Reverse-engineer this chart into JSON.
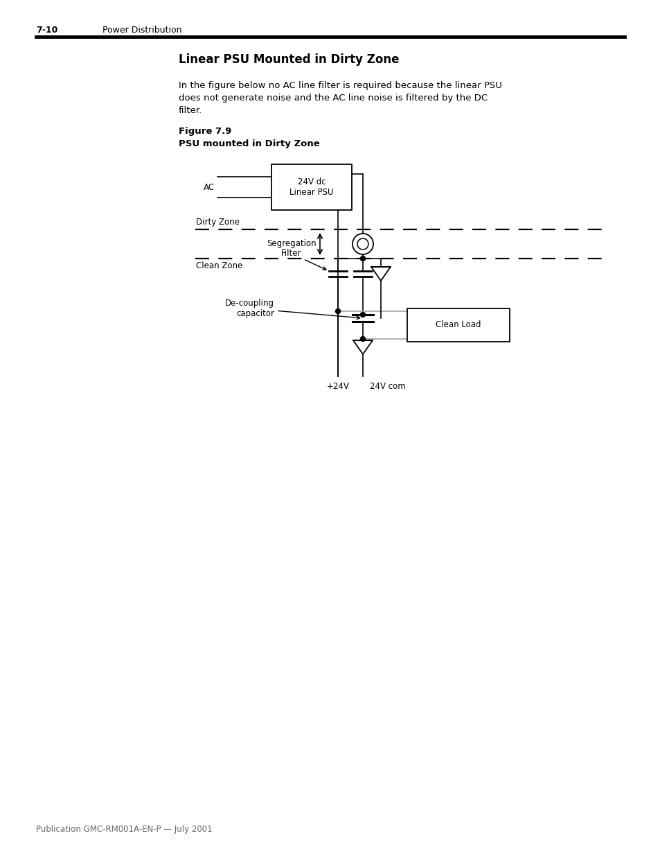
{
  "page_number": "7-10",
  "page_header": "Power Distribution",
  "title": "Linear PSU Mounted in Dirty Zone",
  "body_text_line1": "In the figure below no AC line filter is required because the linear PSU",
  "body_text_line2": "does not generate noise and the AC line noise is filtered by the DC",
  "body_text_line3": "filter.",
  "fig_label": "Figure 7.9",
  "fig_caption": "PSU mounted in Dirty Zone",
  "footer": "Publication GMC-RM001A-EN-P — July 2001",
  "bg_color": "#ffffff",
  "label_ac": "AC",
  "label_psu": "24V dc\nLinear PSU",
  "label_dirty": "Dirty Zone",
  "label_clean": "Clean Zone",
  "label_seg": "Segregation",
  "label_filter": "Filter",
  "label_decouple": "De-coupling\ncapacitor",
  "label_plus24": "+24V",
  "label_24com": "24V com",
  "label_cleanload": "Clean Load"
}
